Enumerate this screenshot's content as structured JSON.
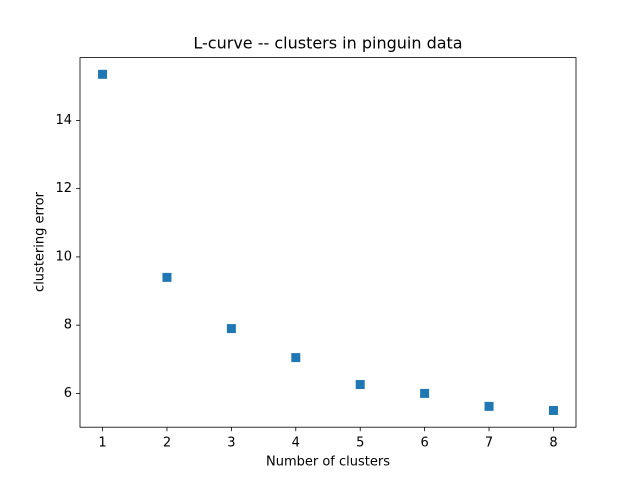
{
  "chart_data": {
    "type": "scatter",
    "title": "L-curve -- clusters in pinguin data",
    "x_label": "Number of clusters",
    "y_label": "clustering error",
    "x": [
      1,
      2,
      3,
      4,
      5,
      6,
      7,
      8
    ],
    "series": [
      {
        "color": "#1f77b4",
        "marker": "square",
        "values": [
          15.35,
          9.4,
          7.9,
          7.05,
          6.26,
          6.0,
          5.62,
          5.5
        ]
      }
    ],
    "xlim": [
      0.65,
      8.35
    ],
    "ylim": [
      5.01,
      15.84
    ],
    "xticks": [
      1,
      2,
      3,
      4,
      5,
      6,
      7,
      8
    ],
    "yticks": [
      6,
      8,
      10,
      12,
      14
    ],
    "grid": false
  }
}
